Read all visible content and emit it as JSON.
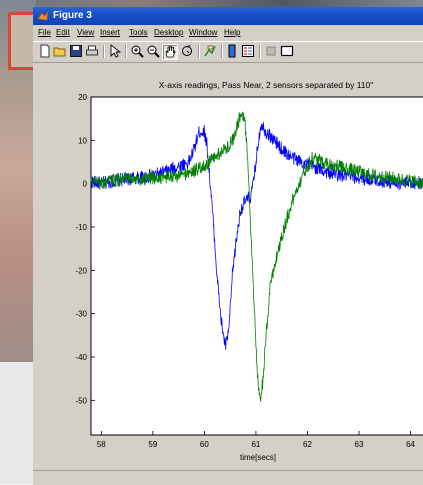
{
  "window": {
    "title": "Figure 3"
  },
  "menu": {
    "items": [
      "File",
      "Edit",
      "View",
      "Insert",
      "Tools",
      "Desktop",
      "Window",
      "Help"
    ]
  },
  "toolbar": {
    "icons": [
      "new-figure-icon",
      "open-file-icon",
      "save-icon",
      "print-icon",
      "edit-plot-arrow-icon",
      "zoom-in-icon",
      "zoom-out-icon",
      "pan-hand-icon",
      "rotate-3d-icon",
      "data-cursor-icon",
      "insert-colorbar-icon",
      "insert-legend-icon",
      "hide-plot-tools-icon",
      "show-plot-tools-icon"
    ]
  },
  "colors": {
    "series1": "#0000ff",
    "series2": "#008000",
    "titlebar": "#1a4fc5",
    "window_bg": "#d4d0c8"
  },
  "chart_data": {
    "type": "line",
    "title": "X-axis readings, Pass Near, 2 sensors separated by 110\"",
    "xlabel": "time[secs]",
    "ylabel": "",
    "xlim": [
      57.8,
      64.3
    ],
    "ylim": [
      -58,
      20
    ],
    "xticks": [
      58,
      59,
      60,
      61,
      62,
      63,
      64
    ],
    "yticks": [
      20,
      10,
      0,
      -10,
      -20,
      -30,
      -40,
      -50
    ],
    "grid": false,
    "series": [
      {
        "color": "#0000ff",
        "points": [
          [
            57.8,
            0.5
          ],
          [
            58.0,
            0
          ],
          [
            58.3,
            0.8
          ],
          [
            58.6,
            1.2
          ],
          [
            58.9,
            1.6
          ],
          [
            59.1,
            2.2
          ],
          [
            59.3,
            3
          ],
          [
            59.5,
            4
          ],
          [
            59.7,
            5
          ],
          [
            59.8,
            8
          ],
          [
            59.9,
            12
          ],
          [
            60.0,
            12
          ],
          [
            60.05,
            9
          ],
          [
            60.1,
            2
          ],
          [
            60.18,
            -10
          ],
          [
            60.25,
            -22
          ],
          [
            60.32,
            -31
          ],
          [
            60.38,
            -36
          ],
          [
            60.42,
            -37.5
          ],
          [
            60.48,
            -33
          ],
          [
            60.55,
            -20
          ],
          [
            60.62,
            -13
          ],
          [
            60.7,
            -6
          ],
          [
            60.8,
            -4
          ],
          [
            60.9,
            -3
          ],
          [
            60.95,
            0
          ],
          [
            61.0,
            5
          ],
          [
            61.05,
            10
          ],
          [
            61.1,
            14
          ],
          [
            61.2,
            12
          ],
          [
            61.35,
            10
          ],
          [
            61.5,
            8
          ],
          [
            61.7,
            6
          ],
          [
            61.9,
            5
          ],
          [
            62.1,
            4
          ],
          [
            62.3,
            3
          ],
          [
            62.6,
            2
          ],
          [
            62.9,
            1.5
          ],
          [
            63.2,
            1
          ],
          [
            63.5,
            0.5
          ],
          [
            63.8,
            0
          ],
          [
            64.1,
            0.3
          ],
          [
            64.3,
            0
          ]
        ]
      },
      {
        "color": "#008000",
        "points": [
          [
            57.8,
            0.5
          ],
          [
            58.0,
            0.2
          ],
          [
            58.3,
            0.8
          ],
          [
            58.6,
            1
          ],
          [
            58.9,
            1
          ],
          [
            59.2,
            1.5
          ],
          [
            59.5,
            1.8
          ],
          [
            59.8,
            3
          ],
          [
            60.0,
            4
          ],
          [
            60.2,
            6
          ],
          [
            60.4,
            8
          ],
          [
            60.55,
            10
          ],
          [
            60.65,
            14
          ],
          [
            60.72,
            17
          ],
          [
            60.78,
            15
          ],
          [
            60.83,
            8
          ],
          [
            60.88,
            -5
          ],
          [
            60.93,
            -18
          ],
          [
            60.98,
            -32
          ],
          [
            61.03,
            -45
          ],
          [
            61.08,
            -50.5
          ],
          [
            61.13,
            -46
          ],
          [
            61.2,
            -35
          ],
          [
            61.28,
            -23
          ],
          [
            61.38,
            -18
          ],
          [
            61.48,
            -13
          ],
          [
            61.58,
            -9
          ],
          [
            61.68,
            -5
          ],
          [
            61.8,
            -1
          ],
          [
            61.95,
            3
          ],
          [
            62.1,
            6
          ],
          [
            62.3,
            5
          ],
          [
            62.6,
            4
          ],
          [
            62.9,
            3
          ],
          [
            63.2,
            2
          ],
          [
            63.5,
            1.5
          ],
          [
            63.8,
            1
          ],
          [
            64.1,
            0.5
          ],
          [
            64.3,
            0
          ]
        ]
      }
    ]
  }
}
